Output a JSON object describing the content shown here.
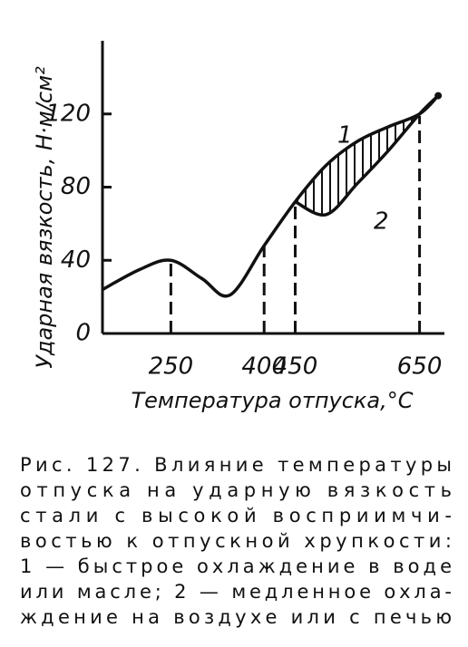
{
  "chart_data": {
    "type": "line",
    "ylabel": "Ударная вязкость, Н·м/см²",
    "xlabel": "Температура отпуска,°C",
    "x": [
      140,
      200,
      250,
      300,
      345,
      400,
      450,
      500,
      550,
      600,
      650,
      680
    ],
    "series": [
      {
        "name": "1",
        "color": "#111111",
        "values": [
          24,
          35,
          40,
          30,
          21,
          48,
          72,
          92,
          105,
          113,
          120,
          130
        ]
      },
      {
        "name": "2",
        "color": "#111111",
        "values": [
          null,
          null,
          null,
          null,
          null,
          null,
          72,
          65,
          82,
          100,
          120,
          130
        ]
      }
    ],
    "xlim": [
      140,
      690
    ],
    "ylim": [
      0,
      160
    ],
    "xticks": [
      250,
      400,
      450,
      650
    ],
    "yticks": [
      0,
      40,
      80,
      120
    ],
    "caption": [
      "Рис. 127. Влияние температуры",
      "отпуска на ударную вязкость",
      "стали с высокой восприимчи-",
      "востью к отпускной хрупкости:",
      "1 — быстрое охлаждение в воде",
      "или масле; 2 — медленное охла-",
      "ждение на воздухе или с печью"
    ]
  }
}
